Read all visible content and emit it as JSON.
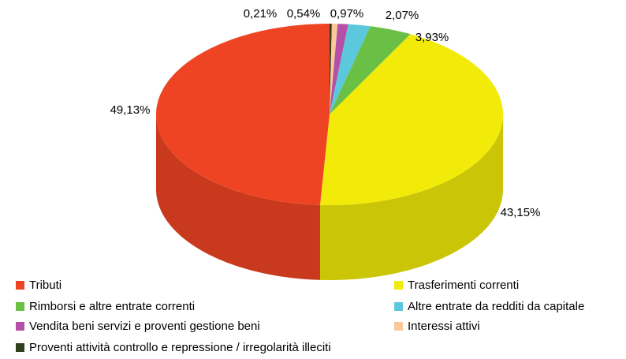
{
  "chart_data": {
    "type": "pie",
    "categories": [
      "Tributi",
      "Trasferimenti correnti",
      "Rimborsi e altre entrate correnti",
      "Altre entrate da redditi da capitale",
      "Vendita beni servizi e proventi gestione beni",
      "Interessi attivi",
      "Proventi attività controllo e repressione / irregolarità illeciti"
    ],
    "values": [
      49.13,
      43.15,
      3.93,
      2.07,
      0.97,
      0.54,
      0.21
    ],
    "value_labels": [
      "49,13%",
      "43,15%",
      "3,93%",
      "2,07%",
      "0,97%",
      "0,54%",
      "0,21%"
    ],
    "colors": [
      "#ef4423",
      "#f2eb0a",
      "#6abf45",
      "#5bc8dc",
      "#b64fa8",
      "#f9c99a",
      "#2f3e1c"
    ],
    "legend": "bottom"
  }
}
